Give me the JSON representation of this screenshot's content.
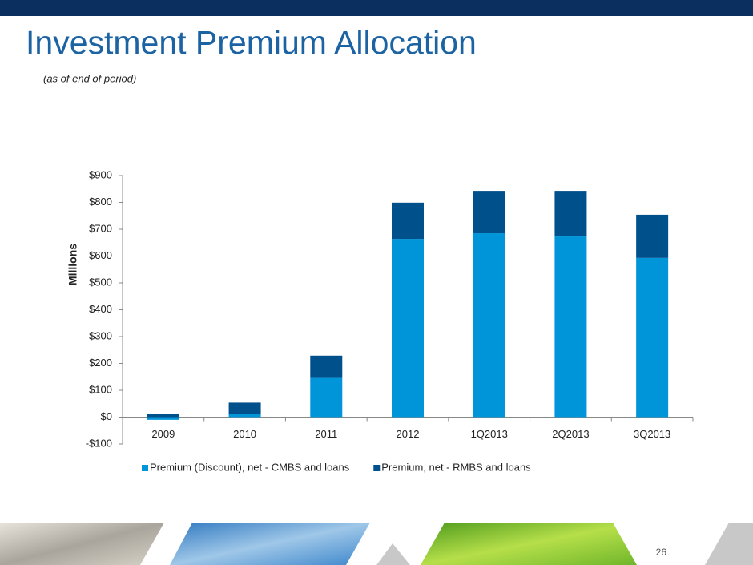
{
  "chart_data": {
    "type": "bar",
    "stacked": true,
    "title": "Investment Premium Allocation",
    "subtitle": "(as of end of period)",
    "y_label": "Millions",
    "categories": [
      "2009",
      "2010",
      "2011",
      "2012",
      "1Q2013",
      "2Q2013",
      "3Q2013"
    ],
    "series": [
      {
        "name": "Premium (Discount), net - CMBS and loans",
        "color": "#0095d9",
        "values": [
          -10,
          12,
          146,
          664,
          685,
          673,
          593
        ]
      },
      {
        "name": "Premium, net - RMBS and loans",
        "color": "#00508c",
        "values": [
          12,
          42,
          83,
          135,
          158,
          170,
          161
        ]
      }
    ],
    "ylim": [
      -100,
      900
    ],
    "yticks": [
      {
        "value": -100,
        "label": "-$100"
      },
      {
        "value": 0,
        "label": "$0"
      },
      {
        "value": 100,
        "label": "$100"
      },
      {
        "value": 200,
        "label": "$200"
      },
      {
        "value": 300,
        "label": "$300"
      },
      {
        "value": 400,
        "label": "$400"
      },
      {
        "value": 500,
        "label": "$500"
      },
      {
        "value": 600,
        "label": "$600"
      },
      {
        "value": 700,
        "label": "$700"
      },
      {
        "value": 800,
        "label": "$800"
      },
      {
        "value": 900,
        "label": "$900"
      }
    ],
    "grid": false,
    "legend": "bottom"
  },
  "slide": {
    "page_number": "26"
  }
}
